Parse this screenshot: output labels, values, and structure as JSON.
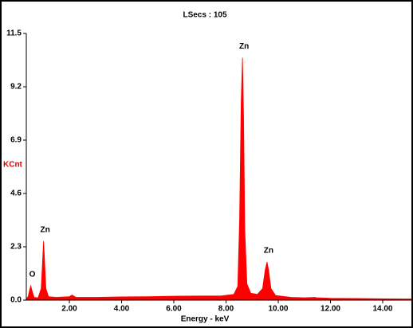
{
  "chart_data": {
    "type": "area",
    "title": "LSecs : 105",
    "x_label": "Energy - keV",
    "y_label": "KCnt",
    "x": [
      0.35,
      0.42,
      0.48,
      0.52,
      0.57,
      0.65,
      0.8,
      0.92,
      0.97,
      1.01,
      1.05,
      1.1,
      1.2,
      1.5,
      2.0,
      2.1,
      2.25,
      3.0,
      4.0,
      5.0,
      6.0,
      7.0,
      7.8,
      8.3,
      8.45,
      8.52,
      8.58,
      8.63,
      8.67,
      8.72,
      8.8,
      8.95,
      9.2,
      9.4,
      9.5,
      9.57,
      9.63,
      9.72,
      9.9,
      10.5,
      11.0,
      11.4,
      11.5,
      12.0,
      13.0,
      14.0,
      15.1
    ],
    "series": [
      {
        "name": "KCnt",
        "color": "#ff0000",
        "values": [
          0.05,
          0.15,
          0.45,
          0.62,
          0.4,
          0.12,
          0.1,
          0.5,
          1.6,
          2.55,
          1.7,
          0.5,
          0.15,
          0.12,
          0.15,
          0.22,
          0.12,
          0.12,
          0.14,
          0.15,
          0.17,
          0.18,
          0.18,
          0.25,
          0.6,
          3.5,
          8.5,
          10.45,
          8.0,
          3.0,
          0.7,
          0.3,
          0.25,
          0.5,
          1.3,
          1.65,
          1.3,
          0.5,
          0.2,
          0.12,
          0.1,
          0.12,
          0.1,
          0.08,
          0.07,
          0.06,
          0.05
        ]
      }
    ],
    "annotations": [
      "O",
      "Zn",
      "Zn",
      "Zn"
    ],
    "xlim": [
      0.35,
      15.1
    ],
    "ylim": [
      0,
      11.5
    ],
    "xticks": [
      {
        "value": 2,
        "label": "2.00"
      },
      {
        "value": 4,
        "label": "4.00"
      },
      {
        "value": 6,
        "label": "6.00"
      },
      {
        "value": 8,
        "label": "8.00"
      },
      {
        "value": 10,
        "label": "10.00"
      },
      {
        "value": 12,
        "label": "12.00"
      },
      {
        "value": 14,
        "label": "14.00"
      }
    ],
    "yticks": [
      {
        "value": 0,
        "label": "0.0"
      },
      2.3,
      4.6,
      6.9,
      9.2,
      11.5
    ],
    "grid": false
  }
}
